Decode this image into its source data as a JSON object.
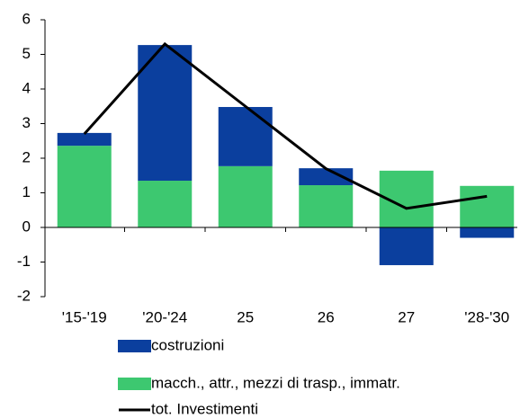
{
  "chart_data": {
    "type": "stacked_bar_line",
    "categories": [
      "'15-'19",
      "'20-'24",
      "25",
      "26",
      "27",
      "'28-'30"
    ],
    "series": [
      {
        "name": "costruzioni",
        "color": "#0b3f9e",
        "values": [
          0.37,
          3.92,
          1.71,
          0.49,
          -1.09,
          -0.3
        ]
      },
      {
        "name": "macch., attr., mezzi di trasp., immatr.",
        "color": "#3dc870",
        "values": [
          2.36,
          1.35,
          1.77,
          1.22,
          1.64,
          1.2
        ]
      },
      {
        "name": "tot. Investimenti",
        "color": "#000000",
        "type": "line",
        "values": [
          2.7,
          5.3,
          3.5,
          1.7,
          0.55,
          0.9
        ]
      }
    ],
    "ylim": [
      -2,
      6
    ],
    "yticks": [
      -2,
      -1,
      0,
      1,
      2,
      3,
      4,
      5,
      6
    ]
  }
}
